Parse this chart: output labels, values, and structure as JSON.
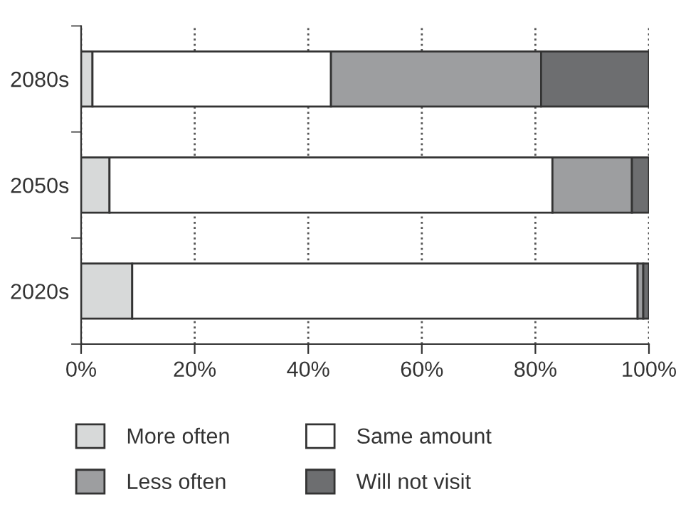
{
  "chart_data": {
    "type": "bar",
    "orientation": "horizontal",
    "stacked": true,
    "categories": [
      "2080s",
      "2050s",
      "2020s"
    ],
    "series": [
      {
        "name": "More often",
        "color": "#d7d9d9",
        "values": [
          2,
          5,
          9
        ]
      },
      {
        "name": "Same amount",
        "color": "#ffffff",
        "values": [
          42,
          78,
          89
        ]
      },
      {
        "name": "Less often",
        "color": "#9d9ea0",
        "values": [
          37,
          14,
          1
        ]
      },
      {
        "name": "Will not visit",
        "color": "#6d6e70",
        "values": [
          19,
          3,
          1
        ]
      }
    ],
    "xlim": [
      0,
      100
    ],
    "xticks": [
      {
        "value": 0,
        "label": "0%"
      },
      {
        "value": 20,
        "label": "20%"
      },
      {
        "value": 40,
        "label": "40%"
      },
      {
        "value": 60,
        "label": "60%"
      },
      {
        "value": 80,
        "label": "80%"
      },
      {
        "value": 100,
        "label": "100%"
      }
    ],
    "grid": "x",
    "legend": "bottom"
  }
}
